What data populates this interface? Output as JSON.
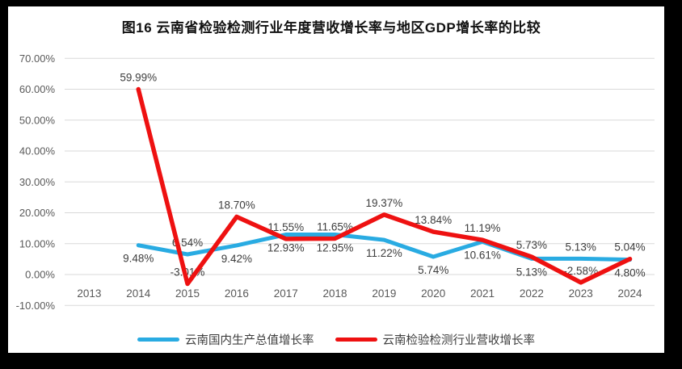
{
  "chart_data": {
    "type": "line",
    "title": "图16  云南省检验检测行业年度营收增长率与地区GDP增长率的比较",
    "categories": [
      "2013",
      "2014",
      "2015",
      "2016",
      "2017",
      "2018",
      "2019",
      "2020",
      "2021",
      "2022",
      "2023",
      "2024"
    ],
    "series": [
      {
        "name": "云南国内生产总值增长率",
        "color": "#29ABE2",
        "line_width": 5,
        "values": [
          null,
          9.48,
          6.54,
          9.42,
          12.93,
          12.95,
          11.22,
          5.74,
          10.61,
          5.13,
          5.13,
          4.8
        ],
        "labels": [
          null,
          "9.48%",
          "6.54%",
          "9.42%",
          "12.93%",
          "12.95%",
          "11.22%",
          "5.74%",
          "10.61%",
          "5.13%",
          "5.13%",
          "4.80%"
        ],
        "label_positions": [
          null,
          "below",
          "above",
          "below",
          "below",
          "below",
          "below",
          "below",
          "below",
          "below",
          "above",
          "below"
        ]
      },
      {
        "name": "云南检验检测行业营收增长率",
        "color": "#EE1111",
        "line_width": 5.5,
        "values": [
          null,
          59.99,
          -3.01,
          18.7,
          11.55,
          11.65,
          19.37,
          13.84,
          11.19,
          5.73,
          -2.58,
          5.04
        ],
        "labels": [
          null,
          "59.99%",
          "-3.01%",
          "18.70%",
          "11.55%",
          "11.65%",
          "19.37%",
          "13.84%",
          "11.19%",
          "5.73%",
          "-2.58%",
          "5.04%"
        ],
        "label_positions": [
          null,
          "above",
          "above",
          "above",
          "above",
          "above",
          "above",
          "above",
          "above",
          "above",
          "above",
          "above"
        ]
      }
    ],
    "y_axis": {
      "min": -10,
      "max": 70,
      "step": 10,
      "tick_labels": [
        "70.00%",
        "60.00%",
        "50.00%",
        "40.00%",
        "30.00%",
        "20.00%",
        "10.00%",
        "0.00%",
        "-10.00%"
      ]
    },
    "xlabel": "",
    "ylabel": "",
    "grid": true,
    "legend_position": "bottom",
    "colors": {
      "grid": "#D9D9D9",
      "axis_text": "#595959",
      "data_label_text": "#3d3d3d",
      "chart_background": "#FFFFFF",
      "frame": "#000000"
    }
  }
}
